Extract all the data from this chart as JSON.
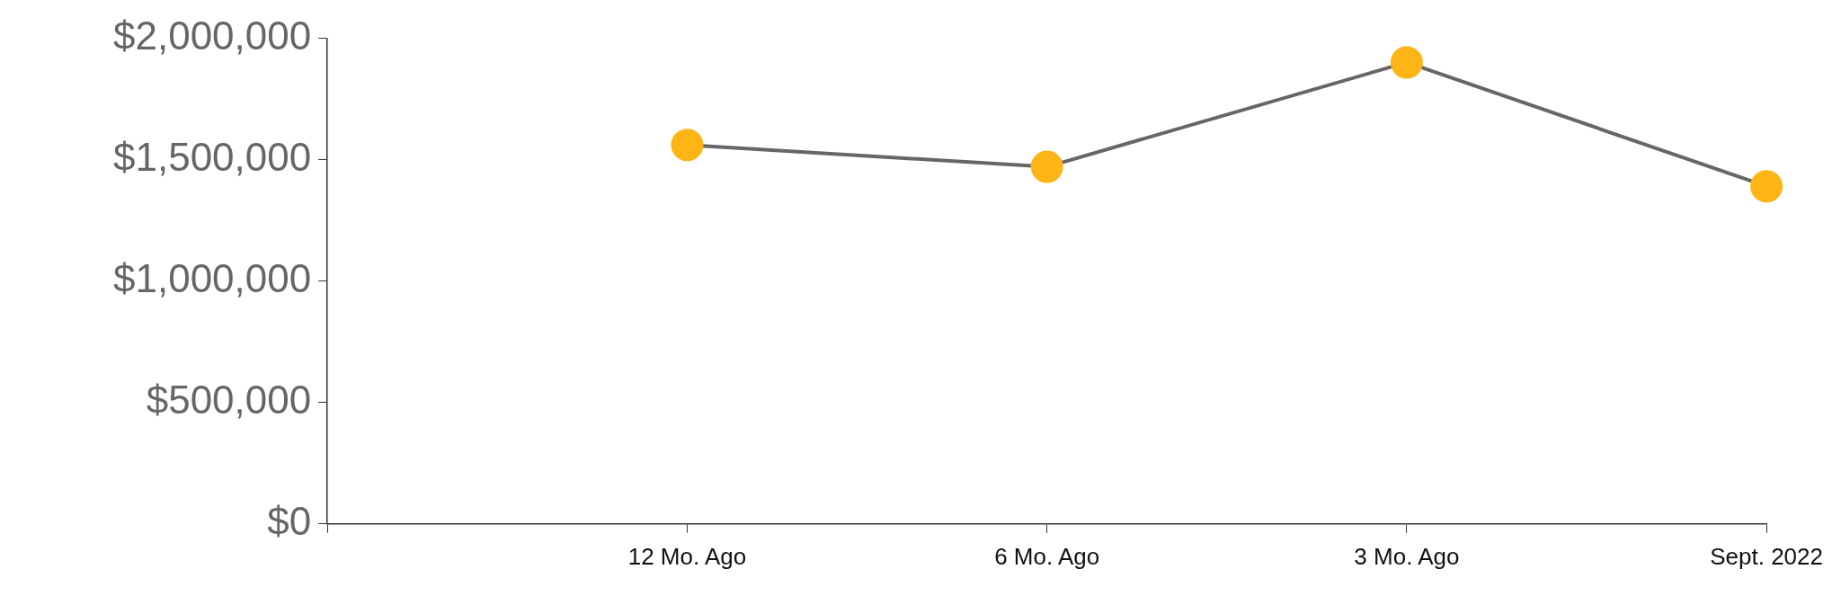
{
  "chart_data": {
    "type": "line",
    "categories": [
      null,
      "12 Mo. Ago",
      "6 Mo. Ago",
      "3 Mo. Ago",
      "Sept. 2022"
    ],
    "series": [
      {
        "color": "#666666",
        "colors": [
          null,
          "#fdb515",
          "#fdb515",
          "#fdb515",
          "#fdb515"
        ],
        "values": [
          null,
          1560000,
          1470000,
          1900000,
          1390000
        ]
      }
    ],
    "ylim": [
      0,
      2000000
    ],
    "yticks": [
      {
        "value": 0,
        "label": "$0"
      },
      {
        "value": 500000,
        "label": "$500,000"
      },
      {
        "value": 1000000,
        "label": "$1,000,000"
      },
      {
        "value": 1500000,
        "label": "$1,500,000"
      },
      {
        "value": 2000000,
        "label": "$2,000,000"
      }
    ],
    "marker": "circle",
    "line_style": "solid",
    "grid": false,
    "legend": false
  }
}
